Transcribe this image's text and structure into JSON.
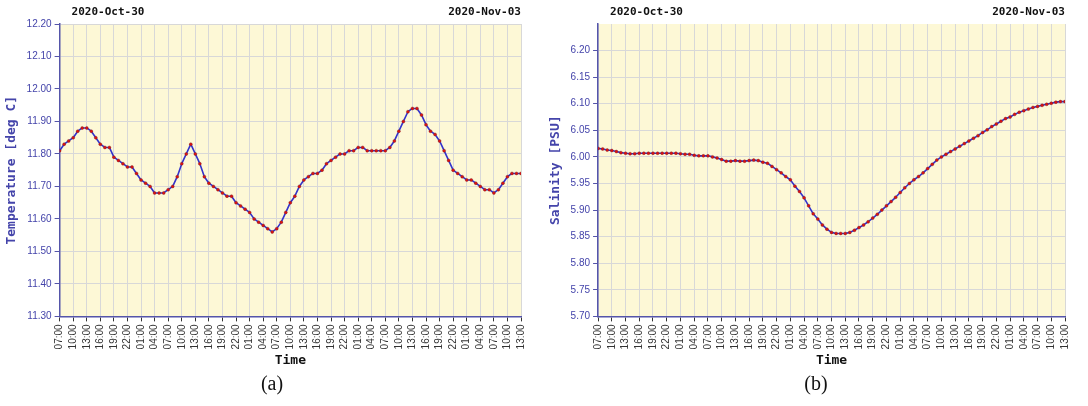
{
  "chart_data": [
    {
      "type": "line",
      "ylabel": "Temperature [deg C]",
      "xlabel": "Time",
      "annotations": [
        "2020-Oct-30",
        "2020-Nov-03",
        "(a)"
      ],
      "marker": "circle",
      "grid": true,
      "legend": false,
      "x": [
        "2020-10-30T07:00",
        "2020-10-30T08:00",
        "2020-10-30T09:00",
        "2020-10-30T10:00",
        "2020-10-30T11:00",
        "2020-10-30T12:00",
        "2020-10-30T13:00",
        "2020-10-30T14:00",
        "2020-10-30T15:00",
        "2020-10-30T16:00",
        "2020-10-30T17:00",
        "2020-10-30T18:00",
        "2020-10-30T19:00",
        "2020-10-30T20:00",
        "2020-10-30T21:00",
        "2020-10-30T22:00",
        "2020-10-30T23:00",
        "2020-10-31T00:00",
        "2020-10-31T01:00",
        "2020-10-31T02:00",
        "2020-10-31T03:00",
        "2020-10-31T04:00",
        "2020-10-31T05:00",
        "2020-10-31T06:00",
        "2020-10-31T07:00",
        "2020-10-31T08:00",
        "2020-10-31T09:00",
        "2020-10-31T10:00",
        "2020-10-31T11:00",
        "2020-10-31T12:00",
        "2020-10-31T13:00",
        "2020-10-31T14:00",
        "2020-10-31T15:00",
        "2020-10-31T16:00",
        "2020-10-31T17:00",
        "2020-10-31T18:00",
        "2020-10-31T19:00",
        "2020-10-31T20:00",
        "2020-10-31T21:00",
        "2020-10-31T22:00",
        "2020-10-31T23:00",
        "2020-11-01T00:00",
        "2020-11-01T01:00",
        "2020-11-01T02:00",
        "2020-11-01T03:00",
        "2020-11-01T04:00",
        "2020-11-01T05:00",
        "2020-11-01T06:00",
        "2020-11-01T07:00",
        "2020-11-01T08:00",
        "2020-11-01T09:00",
        "2020-11-01T10:00",
        "2020-11-01T11:00",
        "2020-11-01T12:00",
        "2020-11-01T13:00",
        "2020-11-01T14:00",
        "2020-11-01T15:00",
        "2020-11-01T16:00",
        "2020-11-01T17:00",
        "2020-11-01T18:00",
        "2020-11-01T19:00",
        "2020-11-01T20:00",
        "2020-11-01T21:00",
        "2020-11-01T22:00",
        "2020-11-01T23:00",
        "2020-11-02T00:00",
        "2020-11-02T01:00",
        "2020-11-02T02:00",
        "2020-11-02T03:00",
        "2020-11-02T04:00",
        "2020-11-02T05:00",
        "2020-11-02T06:00",
        "2020-11-02T07:00",
        "2020-11-02T08:00",
        "2020-11-02T09:00",
        "2020-11-02T10:00",
        "2020-11-02T11:00",
        "2020-11-02T12:00",
        "2020-11-02T13:00",
        "2020-11-02T14:00",
        "2020-11-02T15:00",
        "2020-11-02T16:00",
        "2020-11-02T17:00",
        "2020-11-02T18:00",
        "2020-11-02T19:00",
        "2020-11-02T20:00",
        "2020-11-02T21:00",
        "2020-11-02T22:00",
        "2020-11-02T23:00",
        "2020-11-03T00:00",
        "2020-11-03T01:00",
        "2020-11-03T02:00",
        "2020-11-03T03:00",
        "2020-11-03T04:00",
        "2020-11-03T05:00",
        "2020-11-03T06:00",
        "2020-11-03T07:00",
        "2020-11-03T08:00",
        "2020-11-03T09:00",
        "2020-11-03T10:00",
        "2020-11-03T11:00",
        "2020-11-03T12:00",
        "2020-11-03T13:00"
      ],
      "series": [
        {
          "color": "#3333cc",
          "values": [
            11.81,
            11.83,
            11.84,
            11.85,
            11.87,
            11.88,
            11.88,
            11.87,
            11.85,
            11.83,
            11.82,
            11.82,
            11.79,
            11.78,
            11.77,
            11.76,
            11.76,
            11.74,
            11.72,
            11.71,
            11.7,
            11.68,
            11.68,
            11.68,
            11.69,
            11.7,
            11.73,
            11.77,
            11.8,
            11.83,
            11.8,
            11.77,
            11.73,
            11.71,
            11.7,
            11.69,
            11.68,
            11.67,
            11.67,
            11.65,
            11.64,
            11.63,
            11.62,
            11.6,
            11.59,
            11.58,
            11.57,
            11.56,
            11.57,
            11.59,
            11.62,
            11.65,
            11.67,
            11.7,
            11.72,
            11.73,
            11.74,
            11.74,
            11.75,
            11.77,
            11.78,
            11.79,
            11.8,
            11.8,
            11.81,
            11.81,
            11.82,
            11.82,
            11.81,
            11.81,
            11.81,
            11.81,
            11.81,
            11.82,
            11.84,
            11.87,
            11.9,
            11.93,
            11.94,
            11.94,
            11.92,
            11.89,
            11.87,
            11.86,
            11.84,
            11.81,
            11.78,
            11.75,
            11.74,
            11.73,
            11.72,
            11.72,
            11.71,
            11.7,
            11.69,
            11.69,
            11.68,
            11.69,
            11.71,
            11.73,
            11.74,
            11.74,
            11.74
          ]
        }
      ],
      "xlim": [
        "2020-10-30T07:00",
        "2020-11-03T13:00"
      ],
      "xticks": [
        {
          "value": "2020-10-30T07:00",
          "label": "07:00"
        },
        {
          "value": "2020-10-30T10:00",
          "label": "10:00"
        },
        {
          "value": "2020-10-30T13:00",
          "label": "13:00"
        },
        {
          "value": "2020-10-30T16:00",
          "label": "16:00"
        },
        {
          "value": "2020-10-30T19:00",
          "label": "19:00"
        },
        {
          "value": "2020-10-30T22:00",
          "label": "22:00"
        },
        {
          "value": "2020-10-31T01:00",
          "label": "01:00"
        },
        {
          "value": "2020-10-31T04:00",
          "label": "04:00"
        },
        {
          "value": "2020-10-31T07:00",
          "label": "07:00"
        },
        {
          "value": "2020-10-31T10:00",
          "label": "10:00"
        },
        {
          "value": "2020-10-31T13:00",
          "label": "13:00"
        },
        {
          "value": "2020-10-31T16:00",
          "label": "16:00"
        },
        {
          "value": "2020-10-31T19:00",
          "label": "19:00"
        },
        {
          "value": "2020-10-31T22:00",
          "label": "22:00"
        },
        {
          "value": "2020-11-01T01:00",
          "label": "01:00"
        },
        {
          "value": "2020-11-01T04:00",
          "label": "04:00"
        },
        {
          "value": "2020-11-01T07:00",
          "label": "07:00"
        },
        {
          "value": "2020-11-01T10:00",
          "label": "10:00"
        },
        {
          "value": "2020-11-01T13:00",
          "label": "13:00"
        },
        {
          "value": "2020-11-01T16:00",
          "label": "16:00"
        },
        {
          "value": "2020-11-01T19:00",
          "label": "19:00"
        },
        {
          "value": "2020-11-01T22:00",
          "label": "22:00"
        },
        {
          "value": "2020-11-02T01:00",
          "label": "01:00"
        },
        {
          "value": "2020-11-02T04:00",
          "label": "04:00"
        },
        {
          "value": "2020-11-02T07:00",
          "label": "07:00"
        },
        {
          "value": "2020-11-02T10:00",
          "label": "10:00"
        },
        {
          "value": "2020-11-02T13:00",
          "label": "13:00"
        },
        {
          "value": "2020-11-02T16:00",
          "label": "16:00"
        },
        {
          "value": "2020-11-02T19:00",
          "label": "19:00"
        },
        {
          "value": "2020-11-02T22:00",
          "label": "22:00"
        },
        {
          "value": "2020-11-03T01:00",
          "label": "01:00"
        },
        {
          "value": "2020-11-03T04:00",
          "label": "04:00"
        },
        {
          "value": "2020-11-03T07:00",
          "label": "07:00"
        },
        {
          "value": "2020-11-03T10:00",
          "label": "10:00"
        },
        {
          "value": "2020-11-03T13:00",
          "label": "13:00"
        }
      ],
      "ylim": [
        11.3,
        12.2
      ],
      "yticks": [
        {
          "value": 11.3,
          "label": "11.30"
        },
        {
          "value": 11.4,
          "label": "11.40"
        },
        {
          "value": 11.5,
          "label": "11.50"
        },
        {
          "value": 11.6,
          "label": "11.60"
        },
        {
          "value": 11.7,
          "label": "11.70"
        },
        {
          "value": 11.8,
          "label": "11.80"
        },
        {
          "value": 11.9,
          "label": "11.90"
        },
        {
          "value": 12.0,
          "label": "12.00"
        },
        {
          "value": 12.1,
          "label": "12.10"
        },
        {
          "value": 12.2,
          "label": "12.20"
        }
      ]
    },
    {
      "type": "line",
      "ylabel": "Salinity [PSU]",
      "xlabel": "Time",
      "annotations": [
        "2020-Oct-30",
        "2020-Nov-03",
        "(b)"
      ],
      "marker": "circle",
      "grid": true,
      "legend": false,
      "x": [
        "2020-10-30T07:00",
        "2020-10-30T08:00",
        "2020-10-30T09:00",
        "2020-10-30T10:00",
        "2020-10-30T11:00",
        "2020-10-30T12:00",
        "2020-10-30T13:00",
        "2020-10-30T14:00",
        "2020-10-30T15:00",
        "2020-10-30T16:00",
        "2020-10-30T17:00",
        "2020-10-30T18:00",
        "2020-10-30T19:00",
        "2020-10-30T20:00",
        "2020-10-30T21:00",
        "2020-10-30T22:00",
        "2020-10-30T23:00",
        "2020-10-31T00:00",
        "2020-10-31T01:00",
        "2020-10-31T02:00",
        "2020-10-31T03:00",
        "2020-10-31T04:00",
        "2020-10-31T05:00",
        "2020-10-31T06:00",
        "2020-10-31T07:00",
        "2020-10-31T08:00",
        "2020-10-31T09:00",
        "2020-10-31T10:00",
        "2020-10-31T11:00",
        "2020-10-31T12:00",
        "2020-10-31T13:00",
        "2020-10-31T14:00",
        "2020-10-31T15:00",
        "2020-10-31T16:00",
        "2020-10-31T17:00",
        "2020-10-31T18:00",
        "2020-10-31T19:00",
        "2020-10-31T20:00",
        "2020-10-31T21:00",
        "2020-10-31T22:00",
        "2020-10-31T23:00",
        "2020-11-01T00:00",
        "2020-11-01T01:00",
        "2020-11-01T02:00",
        "2020-11-01T03:00",
        "2020-11-01T04:00",
        "2020-11-01T05:00",
        "2020-11-01T06:00",
        "2020-11-01T07:00",
        "2020-11-01T08:00",
        "2020-11-01T09:00",
        "2020-11-01T10:00",
        "2020-11-01T11:00",
        "2020-11-01T12:00",
        "2020-11-01T13:00",
        "2020-11-01T14:00",
        "2020-11-01T15:00",
        "2020-11-01T16:00",
        "2020-11-01T17:00",
        "2020-11-01T18:00",
        "2020-11-01T19:00",
        "2020-11-01T20:00",
        "2020-11-01T21:00",
        "2020-11-01T22:00",
        "2020-11-01T23:00",
        "2020-11-02T00:00",
        "2020-11-02T01:00",
        "2020-11-02T02:00",
        "2020-11-02T03:00",
        "2020-11-02T04:00",
        "2020-11-02T05:00",
        "2020-11-02T06:00",
        "2020-11-02T07:00",
        "2020-11-02T08:00",
        "2020-11-02T09:00",
        "2020-11-02T10:00",
        "2020-11-02T11:00",
        "2020-11-02T12:00",
        "2020-11-02T13:00",
        "2020-11-02T14:00",
        "2020-11-02T15:00",
        "2020-11-02T16:00",
        "2020-11-02T17:00",
        "2020-11-02T18:00",
        "2020-11-02T19:00",
        "2020-11-02T20:00",
        "2020-11-02T21:00",
        "2020-11-02T22:00",
        "2020-11-02T23:00",
        "2020-11-03T00:00",
        "2020-11-03T01:00",
        "2020-11-03T02:00",
        "2020-11-03T03:00",
        "2020-11-03T04:00",
        "2020-11-03T05:00",
        "2020-11-03T06:00",
        "2020-11-03T07:00",
        "2020-11-03T08:00",
        "2020-11-03T09:00",
        "2020-11-03T10:00",
        "2020-11-03T11:00",
        "2020-11-03T12:00",
        "2020-11-03T13:00"
      ],
      "series": [
        {
          "color": "#3333cc",
          "values": [
            6.016,
            6.015,
            6.013,
            6.012,
            6.01,
            6.008,
            6.007,
            6.006,
            6.006,
            6.007,
            6.007,
            6.007,
            6.007,
            6.007,
            6.007,
            6.007,
            6.007,
            6.007,
            6.006,
            6.005,
            6.005,
            6.003,
            6.002,
            6.002,
            6.002,
            6.0,
            5.998,
            5.995,
            5.992,
            5.992,
            5.993,
            5.992,
            5.992,
            5.993,
            5.994,
            5.993,
            5.99,
            5.988,
            5.982,
            5.976,
            5.97,
            5.963,
            5.957,
            5.945,
            5.935,
            5.923,
            5.908,
            5.893,
            5.883,
            5.872,
            5.864,
            5.858,
            5.856,
            5.856,
            5.856,
            5.858,
            5.862,
            5.867,
            5.872,
            5.878,
            5.885,
            5.892,
            5.9,
            5.908,
            5.916,
            5.924,
            5.933,
            5.942,
            5.95,
            5.957,
            5.963,
            5.97,
            5.978,
            5.986,
            5.994,
            6.0,
            6.005,
            6.01,
            6.015,
            6.02,
            6.025,
            6.03,
            6.035,
            6.04,
            6.046,
            6.051,
            6.057,
            6.062,
            6.067,
            6.072,
            6.075,
            6.08,
            6.084,
            6.087,
            6.09,
            6.093,
            6.095,
            6.097,
            6.099,
            6.101,
            6.103,
            6.104,
            6.104
          ]
        }
      ],
      "xlim": [
        "2020-10-30T07:00",
        "2020-11-03T13:00"
      ],
      "xticks": [
        {
          "value": "2020-10-30T07:00",
          "label": "07:00"
        },
        {
          "value": "2020-10-30T10:00",
          "label": "10:00"
        },
        {
          "value": "2020-10-30T13:00",
          "label": "13:00"
        },
        {
          "value": "2020-10-30T16:00",
          "label": "16:00"
        },
        {
          "value": "2020-10-30T19:00",
          "label": "19:00"
        },
        {
          "value": "2020-10-30T22:00",
          "label": "22:00"
        },
        {
          "value": "2020-10-31T01:00",
          "label": "01:00"
        },
        {
          "value": "2020-10-31T04:00",
          "label": "04:00"
        },
        {
          "value": "2020-10-31T07:00",
          "label": "07:00"
        },
        {
          "value": "2020-10-31T10:00",
          "label": "10:00"
        },
        {
          "value": "2020-10-31T13:00",
          "label": "13:00"
        },
        {
          "value": "2020-10-31T16:00",
          "label": "16:00"
        },
        {
          "value": "2020-10-31T19:00",
          "label": "19:00"
        },
        {
          "value": "2020-10-31T22:00",
          "label": "22:00"
        },
        {
          "value": "2020-11-01T01:00",
          "label": "01:00"
        },
        {
          "value": "2020-11-01T04:00",
          "label": "04:00"
        },
        {
          "value": "2020-11-01T07:00",
          "label": "07:00"
        },
        {
          "value": "2020-11-01T10:00",
          "label": "10:00"
        },
        {
          "value": "2020-11-01T13:00",
          "label": "13:00"
        },
        {
          "value": "2020-11-01T16:00",
          "label": "16:00"
        },
        {
          "value": "2020-11-01T19:00",
          "label": "19:00"
        },
        {
          "value": "2020-11-01T22:00",
          "label": "22:00"
        },
        {
          "value": "2020-11-02T01:00",
          "label": "01:00"
        },
        {
          "value": "2020-11-02T04:00",
          "label": "04:00"
        },
        {
          "value": "2020-11-02T07:00",
          "label": "07:00"
        },
        {
          "value": "2020-11-02T10:00",
          "label": "10:00"
        },
        {
          "value": "2020-11-02T13:00",
          "label": "13:00"
        },
        {
          "value": "2020-11-02T16:00",
          "label": "16:00"
        },
        {
          "value": "2020-11-02T19:00",
          "label": "19:00"
        },
        {
          "value": "2020-11-02T22:00",
          "label": "22:00"
        },
        {
          "value": "2020-11-03T01:00",
          "label": "01:00"
        },
        {
          "value": "2020-11-03T04:00",
          "label": "04:00"
        },
        {
          "value": "2020-11-03T07:00",
          "label": "07:00"
        },
        {
          "value": "2020-11-03T10:00",
          "label": "10:00"
        },
        {
          "value": "2020-11-03T13:00",
          "label": "13:00"
        }
      ],
      "ylim": [
        5.7,
        6.25
      ],
      "yticks": [
        {
          "value": 5.7,
          "label": "5.70"
        },
        {
          "value": 5.75,
          "label": "5.75"
        },
        {
          "value": 5.8,
          "label": "5.80"
        },
        {
          "value": 5.85,
          "label": "5.85"
        },
        {
          "value": 5.9,
          "label": "5.90"
        },
        {
          "value": 5.95,
          "label": "5.95"
        },
        {
          "value": 6.0,
          "label": "6.00"
        },
        {
          "value": 6.05,
          "label": "6.05"
        },
        {
          "value": 6.1,
          "label": "6.10"
        },
        {
          "value": 6.15,
          "label": "6.15"
        },
        {
          "value": 6.2,
          "label": "6.20"
        }
      ]
    }
  ]
}
